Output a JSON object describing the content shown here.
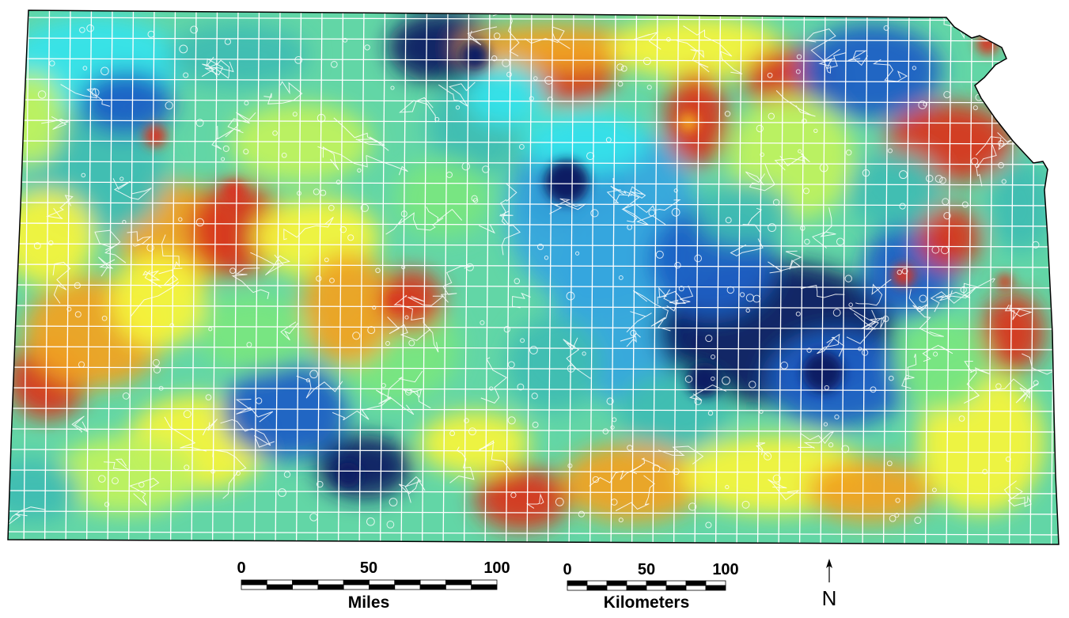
{
  "map": {
    "subject": "Kansas",
    "palette": {
      "navy": "#071a63",
      "blue": "#1c5fc4",
      "sky": "#35a6de",
      "cyan": "#35e3ea",
      "teal": "#3ebdb2",
      "green": "#78e67f",
      "lime": "#bff25e",
      "yellow": "#f4f43c",
      "orange": "#f0a323",
      "red": "#d83520",
      "grid": "#ffffff",
      "outline": "#000000"
    }
  },
  "scale_bars": {
    "miles": {
      "ticks": [
        "0",
        "50",
        "100"
      ],
      "unit": "Miles"
    },
    "kilometers": {
      "ticks": [
        "0",
        "50",
        "100"
      ],
      "unit": "Kilometers"
    }
  },
  "north_arrow": {
    "label": "N"
  }
}
